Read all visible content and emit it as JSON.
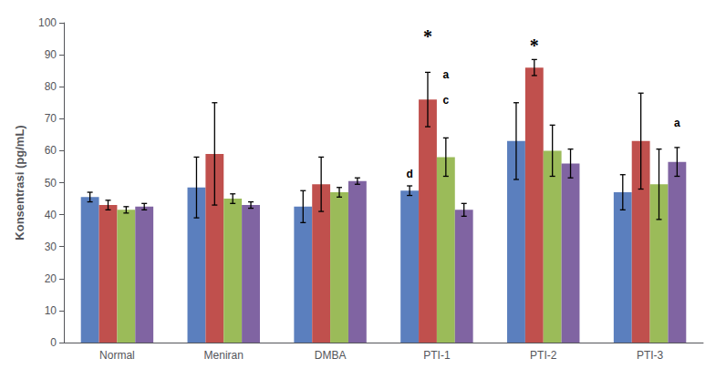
{
  "chart_data": {
    "type": "bar",
    "categories": [
      "Normal",
      "Meniran",
      "DMBA",
      "PTI-1",
      "PTI-2",
      "PTI-3"
    ],
    "series": [
      {
        "color": "#5B7FBE",
        "values": [
          45.5,
          48.5,
          42.5,
          47.5,
          63.0,
          47.0
        ],
        "errors": [
          1.5,
          9.5,
          5.0,
          1.5,
          12.0,
          5.5
        ]
      },
      {
        "color": "#C0504D",
        "values": [
          43.0,
          59.0,
          49.5,
          76.0,
          86.0,
          63.0
        ],
        "errors": [
          1.5,
          16.0,
          8.5,
          8.5,
          2.5,
          15.0
        ]
      },
      {
        "color": "#9BBB59",
        "values": [
          41.5,
          45.0,
          47.0,
          58.0,
          60.0,
          49.5
        ],
        "errors": [
          1.0,
          1.5,
          1.5,
          6.0,
          8.0,
          11.0
        ]
      },
      {
        "color": "#8064A2",
        "values": [
          42.5,
          43.0,
          50.5,
          41.5,
          56.0,
          56.5
        ],
        "errors": [
          1.0,
          1.0,
          1.0,
          2.0,
          4.5,
          4.5
        ]
      }
    ],
    "ylabel": "Konsentrasi (pg/mL)",
    "ylim": [
      0,
      100
    ],
    "yticks": [
      0,
      10,
      20,
      30,
      40,
      50,
      60,
      70,
      80,
      90,
      100
    ],
    "grid": false,
    "annotations": [
      {
        "text": "*",
        "category": "PTI-1",
        "series": 1,
        "y": 93
      },
      {
        "text": "d",
        "category": "PTI-1",
        "series": 0,
        "y": 51
      },
      {
        "text": "a",
        "category": "PTI-1",
        "series": 2,
        "y": 82
      },
      {
        "text": "c",
        "category": "PTI-1",
        "series": 2,
        "y": 74
      },
      {
        "text": "*",
        "category": "PTI-2",
        "series": 1,
        "y": 90
      },
      {
        "text": "a",
        "category": "PTI-3",
        "series": 3,
        "y": 67
      }
    ]
  }
}
